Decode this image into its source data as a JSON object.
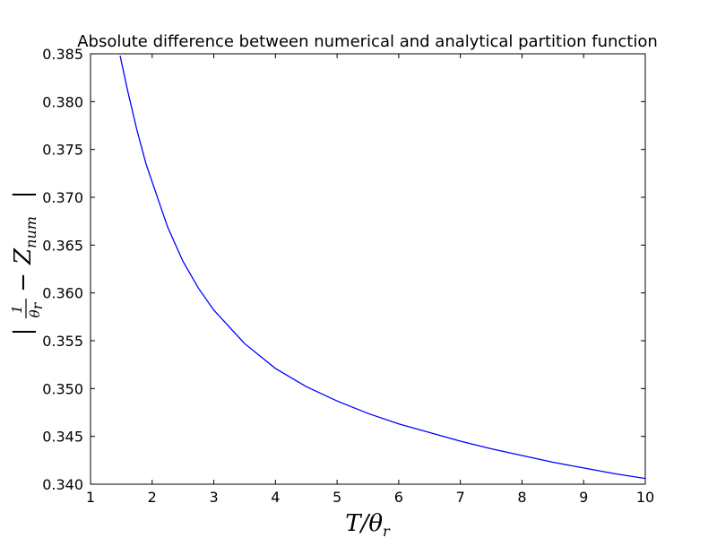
{
  "chart_data": {
    "type": "line",
    "title": "Absolute difference between numerical and analytical partition function",
    "xlabel": "T/θr",
    "ylabel": "| 1/θr − Znum |",
    "xlim": [
      1,
      10
    ],
    "ylim": [
      0.34,
      0.385
    ],
    "x_ticks": [
      "1",
      "2",
      "3",
      "4",
      "5",
      "6",
      "7",
      "8",
      "9",
      "10"
    ],
    "y_ticks": [
      "0.340",
      "0.345",
      "0.350",
      "0.355",
      "0.360",
      "0.365",
      "0.370",
      "0.375",
      "0.380",
      "0.385"
    ],
    "grid": false,
    "legend": null,
    "series": [
      {
        "color": "#0000ff",
        "x": [
          1.48,
          1.6,
          1.75,
          1.9,
          2.0,
          2.25,
          2.5,
          2.75,
          3.0,
          3.5,
          4.0,
          4.5,
          5.0,
          5.5,
          6.0,
          6.5,
          7.0,
          7.5,
          8.0,
          8.5,
          9.0,
          9.5,
          10.0
        ],
        "y": [
          0.3848,
          0.3812,
          0.3771,
          0.3735,
          0.3716,
          0.3669,
          0.3633,
          0.3605,
          0.3582,
          0.3547,
          0.3521,
          0.3502,
          0.3487,
          0.3474,
          0.3463,
          0.3454,
          0.3445,
          0.3437,
          0.343,
          0.3423,
          0.3417,
          0.3411,
          0.3406
        ]
      }
    ]
  }
}
